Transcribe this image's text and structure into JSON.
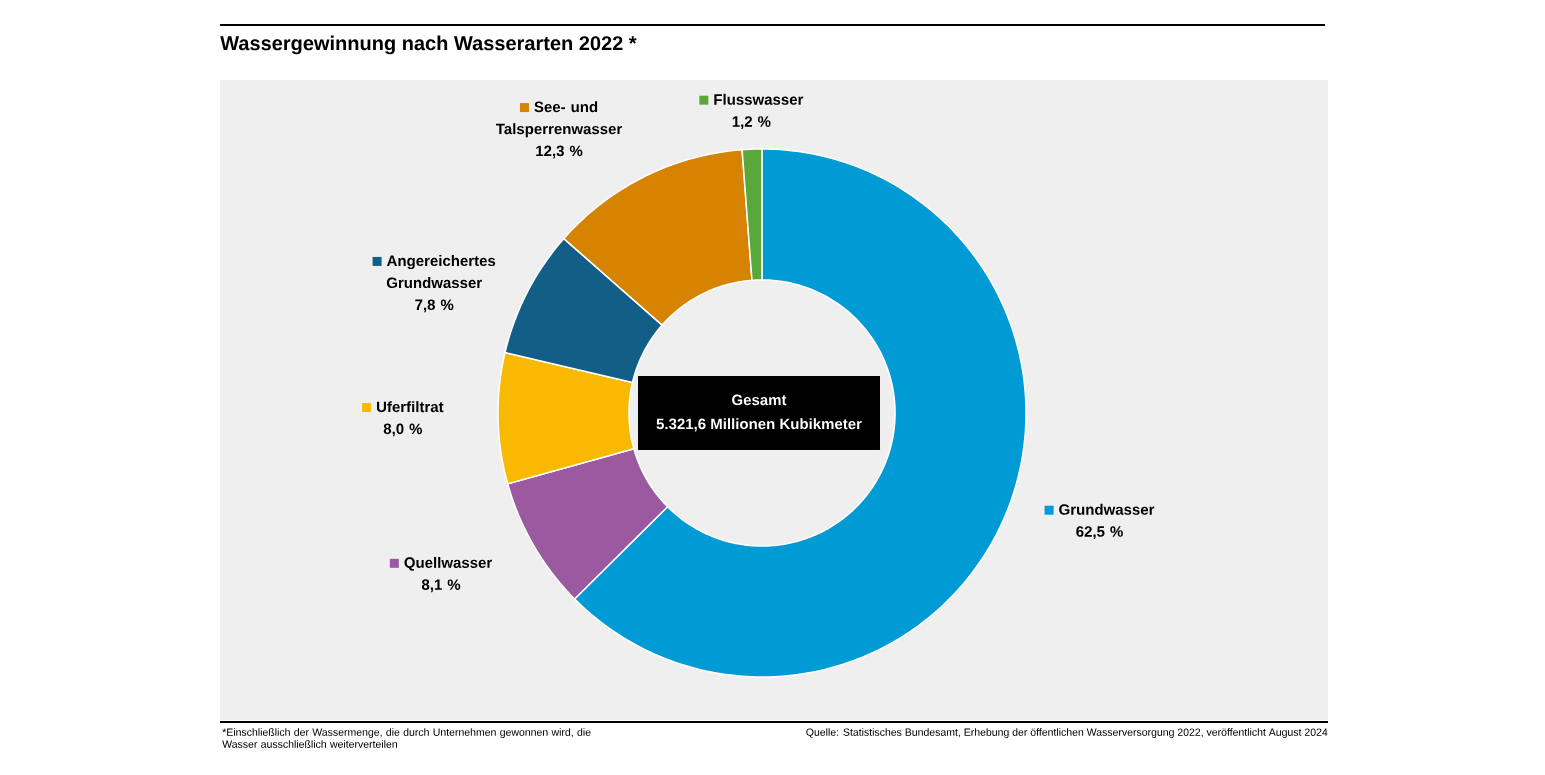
{
  "chart_data": {
    "type": "donut",
    "title": "Wassergewinnung nach Wasserarten 2022 *",
    "categories": [
      "Grundwasser",
      "Quellwasser",
      "Uferfiltrat",
      "Angereichertes Grundwasser",
      "See- und Talsperrenwasser",
      "Flusswasser"
    ],
    "values": [
      62.5,
      8.1,
      8.0,
      7.8,
      12.3,
      1.2
    ],
    "value_labels": [
      "62,5 %",
      "8,1 %",
      "8,0 %",
      "7,8 %",
      "12,3 %",
      "1,2 %"
    ],
    "legend": "left",
    "colors": [
      "#009bd5",
      "#9b59a0",
      "#f9b900",
      "#135e86",
      "#d58300",
      "#5aa73a"
    ],
    "annotations": [
      "Gesamt",
      "5.321,6 Millionen Kubikmeter",
      "*Einschließlich der Wassermenge, die durch Unternehmen gewonnen wird, die Wasser ausschließlich weiterverteilen",
      "Quelle: Statistisches Bundesamt, Erhebung der öffentlichen Wasserversorgung 2022, veröffentlicht August 2024"
    ]
  }
}
